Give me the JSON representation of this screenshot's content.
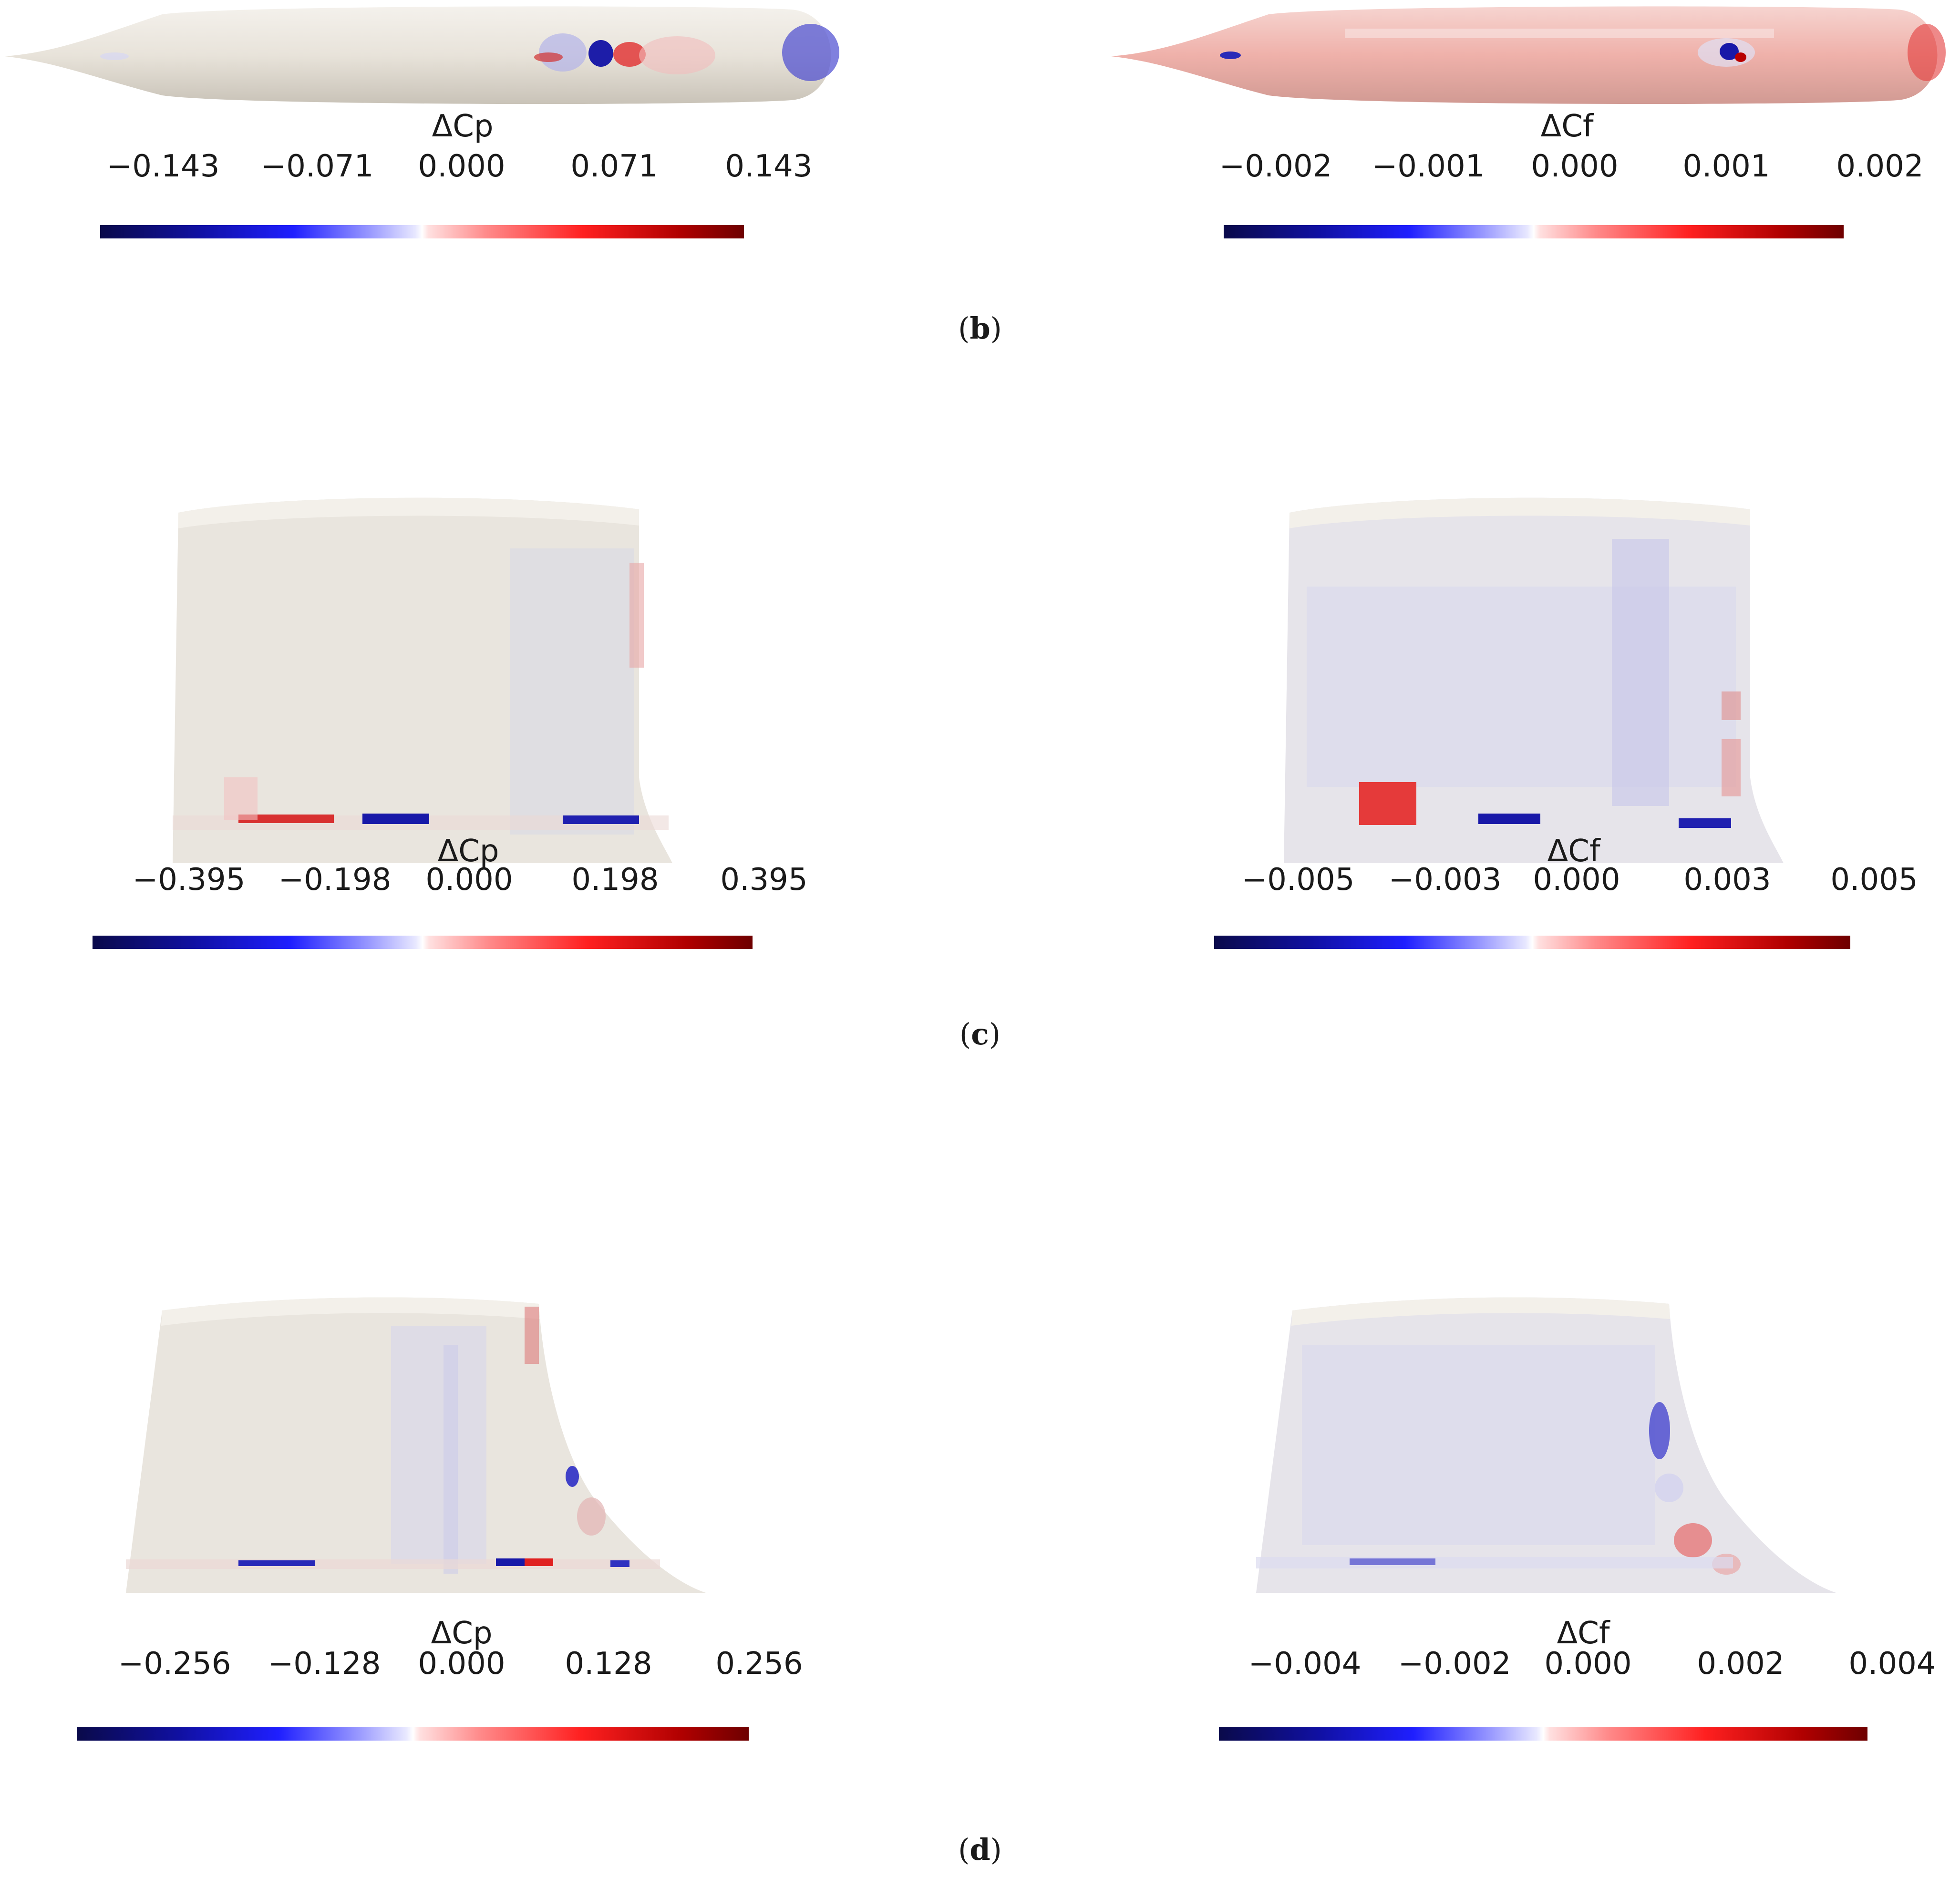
{
  "panels": {
    "b": {
      "caption_open": "(",
      "caption_letter": "b",
      "caption_close": ")",
      "left": {
        "title": "ΔCp",
        "ticks": [
          "−0.143",
          "−0.071",
          "0.000",
          "0.071",
          "0.143"
        ]
      },
      "right": {
        "title": "ΔCf",
        "ticks": [
          "−0.002",
          "−0.001",
          "0.000",
          "0.001",
          "0.002"
        ]
      }
    },
    "c": {
      "caption_open": "(",
      "caption_letter": "c",
      "caption_close": ")",
      "left": {
        "title": "ΔCp",
        "ticks": [
          "−0.395",
          "−0.198",
          "0.000",
          "0.198",
          "0.395"
        ]
      },
      "right": {
        "title": "ΔCf",
        "ticks": [
          "−0.005",
          "−0.003",
          "0.000",
          "0.003",
          "0.005"
        ]
      }
    },
    "d": {
      "caption_open": "(",
      "caption_letter": "d",
      "caption_close": ")",
      "left": {
        "title": "ΔCp",
        "ticks": [
          "−0.256",
          "−0.128",
          "0.000",
          "0.128",
          "0.256"
        ]
      },
      "right": {
        "title": "ΔCf",
        "ticks": [
          "−0.004",
          "−0.002",
          "0.000",
          "0.002",
          "0.004"
        ]
      }
    }
  },
  "colors": {
    "surface": "#e9e4dc",
    "negative": "#1010c8",
    "positive": "#d01010"
  }
}
